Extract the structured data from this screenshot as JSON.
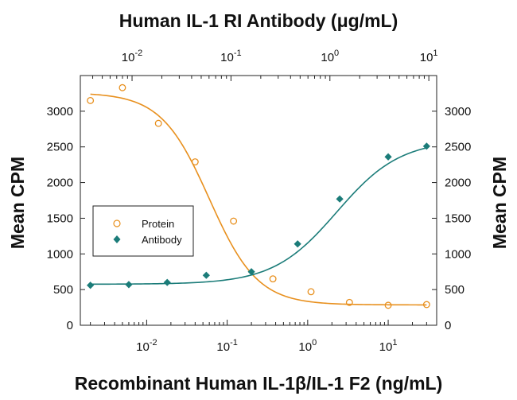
{
  "chart_data": {
    "type": "scatter",
    "title": "Human IL-1 RI Antibody (μg/mL)",
    "xlabel": "Recombinant Human IL-1β/IL-1 F2 (ng/mL)",
    "ylabel": "Mean CPM",
    "ylabel_right": "Mean CPM",
    "x_scale": "log",
    "xlim": [
      0.0015,
      40
    ],
    "ylim": [
      0,
      3500
    ],
    "x_ticks": [
      {
        "value": 0.01,
        "base": "10",
        "exp": "-2"
      },
      {
        "value": 0.1,
        "base": "10",
        "exp": "-1"
      },
      {
        "value": 1,
        "base": "10",
        "exp": "0"
      },
      {
        "value": 10,
        "base": "10",
        "exp": "1"
      }
    ],
    "top_x_scale": "log",
    "top_xlim": [
      0.003,
      12
    ],
    "top_x_ticks": [
      {
        "value": 0.01,
        "base": "10",
        "exp": "-2"
      },
      {
        "value": 0.1,
        "base": "10",
        "exp": "-1"
      },
      {
        "value": 1,
        "base": "10",
        "exp": "0"
      },
      {
        "value": 10,
        "base": "10",
        "exp": "1"
      }
    ],
    "y_ticks": [
      "0",
      "500",
      "1000",
      "1500",
      "2000",
      "2500",
      "3000"
    ],
    "legend_position": "left",
    "series": [
      {
        "name": "Protein",
        "marker": "open-circle",
        "color": "#e8901e",
        "x": [
          0.002,
          0.005,
          0.014,
          0.04,
          0.12,
          0.37,
          1.1,
          3.3,
          10,
          30
        ],
        "y": [
          3150,
          3330,
          2830,
          2290,
          1460,
          650,
          470,
          320,
          280,
          290
        ]
      },
      {
        "name": "Antibody",
        "marker": "filled-diamond",
        "color": "#1b7c79",
        "x": [
          0.002,
          0.006,
          0.018,
          0.055,
          0.2,
          0.75,
          2.5,
          10,
          30
        ],
        "y": [
          560,
          570,
          600,
          700,
          750,
          1140,
          1770,
          2360,
          2510
        ]
      }
    ]
  }
}
